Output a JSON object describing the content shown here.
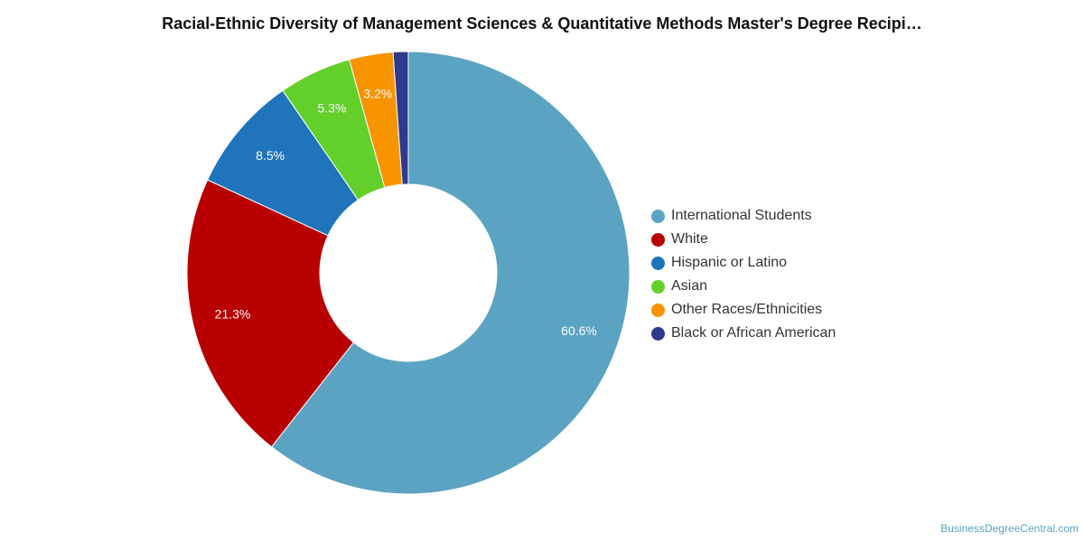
{
  "chart_data": {
    "type": "pie",
    "variant": "donut",
    "title": "Racial-Ethnic Diversity of Management Sciences & Quantitative Methods Master's Degree Recipi…",
    "legend_position": "right",
    "series": [
      {
        "name": "International Students",
        "value": 60.6,
        "label": "60.6%",
        "color": "#5ba3c2"
      },
      {
        "name": "White",
        "value": 21.3,
        "label": "21.3%",
        "color": "#b80000"
      },
      {
        "name": "Hispanic or Latino",
        "value": 8.5,
        "label": "8.5%",
        "color": "#1f74bb"
      },
      {
        "name": "Asian",
        "value": 5.3,
        "label": "5.3%",
        "color": "#63cf2b"
      },
      {
        "name": "Other Races/Ethnicities",
        "value": 3.2,
        "label": "3.2%",
        "color": "#f79400"
      },
      {
        "name": "Black or African American",
        "value": 1.1,
        "label": "",
        "color": "#2e3b8c"
      }
    ]
  },
  "credit": {
    "text": "BusinessDegreeCentral.com"
  }
}
